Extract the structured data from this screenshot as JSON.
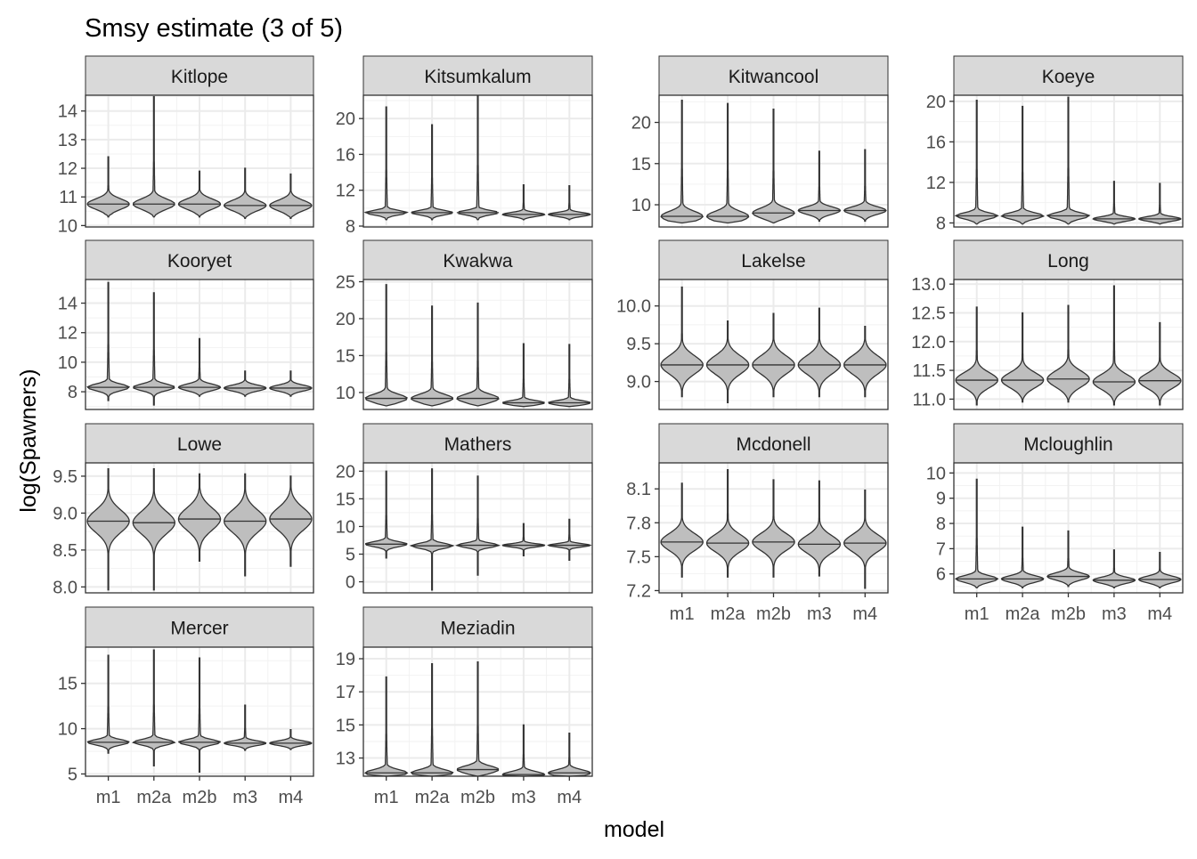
{
  "chart_data": {
    "type": "violin",
    "title": "Smsy estimate (3 of 5)",
    "xlabel": "model",
    "ylabel": "log(Spawners)",
    "categories": [
      "m1",
      "m2a",
      "m2b",
      "m3",
      "m4"
    ],
    "grid": true,
    "colors": {
      "violin_fill": "#bebebe",
      "violin_stroke": "#333333",
      "strip_fill": "#d9d9d9",
      "grid": "#ebebeb",
      "axis_text": "#4d4d4d"
    },
    "panels": [
      {
        "name": "Kitlope",
        "ylim": [
          9.95,
          14.55
        ],
        "yticks": [
          10,
          11,
          12,
          13,
          14
        ],
        "violins": [
          {
            "min": 10.3,
            "max": 12.4,
            "median": 10.75,
            "body": [
              10.45,
              11.1
            ],
            "sd": 0.18
          },
          {
            "min": 10.3,
            "max": 14.5,
            "median": 10.75,
            "body": [
              10.45,
              11.1
            ],
            "sd": 0.18
          },
          {
            "min": 10.3,
            "max": 11.9,
            "median": 10.75,
            "body": [
              10.45,
              11.1
            ],
            "sd": 0.18
          },
          {
            "min": 10.25,
            "max": 12.0,
            "median": 10.7,
            "body": [
              10.4,
              11.05
            ],
            "sd": 0.18
          },
          {
            "min": 10.25,
            "max": 11.8,
            "median": 10.7,
            "body": [
              10.4,
              11.05
            ],
            "sd": 0.18
          }
        ]
      },
      {
        "name": "Kitsumkalum",
        "ylim": [
          7.9,
          22.6
        ],
        "yticks": [
          8,
          12,
          16,
          20
        ],
        "violins": [
          {
            "min": 8.7,
            "max": 21.3,
            "median": 9.5,
            "body": [
              9.0,
              10.0
            ],
            "sd": 0.25
          },
          {
            "min": 8.7,
            "max": 19.3,
            "median": 9.5,
            "body": [
              9.0,
              10.0
            ],
            "sd": 0.25
          },
          {
            "min": 8.7,
            "max": 22.5,
            "median": 9.5,
            "body": [
              9.0,
              10.0
            ],
            "sd": 0.25
          },
          {
            "min": 8.7,
            "max": 12.6,
            "median": 9.3,
            "body": [
              8.9,
              9.8
            ],
            "sd": 0.22
          },
          {
            "min": 8.7,
            "max": 12.5,
            "median": 9.3,
            "body": [
              8.9,
              9.8
            ],
            "sd": 0.22
          }
        ]
      },
      {
        "name": "Kitwancool",
        "ylim": [
          7.3,
          23.3
        ],
        "yticks": [
          10,
          15,
          20
        ],
        "violins": [
          {
            "min": 7.8,
            "max": 22.7,
            "median": 8.6,
            "body": [
              7.9,
              10.5
            ],
            "sd": 0.6
          },
          {
            "min": 7.8,
            "max": 22.3,
            "median": 8.6,
            "body": [
              7.9,
              10.5
            ],
            "sd": 0.6
          },
          {
            "min": 7.8,
            "max": 21.6,
            "median": 9.0,
            "body": [
              8.0,
              11.0
            ],
            "sd": 0.6
          },
          {
            "min": 8.0,
            "max": 16.5,
            "median": 9.3,
            "body": [
              8.4,
              10.2
            ],
            "sd": 0.45
          },
          {
            "min": 8.0,
            "max": 16.7,
            "median": 9.3,
            "body": [
              8.4,
              10.2
            ],
            "sd": 0.45
          }
        ]
      },
      {
        "name": "Koeye",
        "ylim": [
          7.6,
          20.6
        ],
        "yticks": [
          8,
          12,
          16,
          20
        ],
        "violins": [
          {
            "min": 7.9,
            "max": 20.1,
            "median": 8.7,
            "body": [
              8.2,
              9.4
            ],
            "sd": 0.3
          },
          {
            "min": 7.9,
            "max": 19.5,
            "median": 8.7,
            "body": [
              8.2,
              9.4
            ],
            "sd": 0.3
          },
          {
            "min": 7.9,
            "max": 20.4,
            "median": 8.7,
            "body": [
              8.2,
              9.4
            ],
            "sd": 0.3
          },
          {
            "min": 7.9,
            "max": 12.1,
            "median": 8.4,
            "body": [
              8.1,
              8.8
            ],
            "sd": 0.22
          },
          {
            "min": 7.9,
            "max": 11.9,
            "median": 8.4,
            "body": [
              8.1,
              8.8
            ],
            "sd": 0.22
          }
        ]
      },
      {
        "name": "Kooryet",
        "ylim": [
          6.8,
          15.6
        ],
        "yticks": [
          8,
          10,
          12,
          14
        ],
        "violins": [
          {
            "min": 7.4,
            "max": 15.4,
            "median": 8.3,
            "body": [
              7.9,
              8.8
            ],
            "sd": 0.22
          },
          {
            "min": 7.1,
            "max": 14.7,
            "median": 8.3,
            "body": [
              7.9,
              8.8
            ],
            "sd": 0.22
          },
          {
            "min": 7.7,
            "max": 11.6,
            "median": 8.3,
            "body": [
              7.9,
              8.8
            ],
            "sd": 0.22
          },
          {
            "min": 7.7,
            "max": 9.4,
            "median": 8.25,
            "body": [
              7.9,
              8.65
            ],
            "sd": 0.2
          },
          {
            "min": 7.7,
            "max": 9.4,
            "median": 8.25,
            "body": [
              7.9,
              8.65
            ],
            "sd": 0.2
          }
        ]
      },
      {
        "name": "Kwakwa",
        "ylim": [
          7.7,
          25.3
        ],
        "yticks": [
          10,
          15,
          20,
          25
        ],
        "violins": [
          {
            "min": 8.2,
            "max": 24.6,
            "median": 9.2,
            "body": [
              8.3,
              11.0
            ],
            "sd": 0.55
          },
          {
            "min": 8.2,
            "max": 21.7,
            "median": 9.2,
            "body": [
              8.3,
              11.0
            ],
            "sd": 0.55
          },
          {
            "min": 8.2,
            "max": 22.1,
            "median": 9.2,
            "body": [
              8.3,
              10.6
            ],
            "sd": 0.55
          },
          {
            "min": 8.1,
            "max": 16.6,
            "median": 8.6,
            "body": [
              8.2,
              9.3
            ],
            "sd": 0.3
          },
          {
            "min": 8.1,
            "max": 16.5,
            "median": 8.6,
            "body": [
              8.2,
              9.3
            ],
            "sd": 0.3
          }
        ]
      },
      {
        "name": "Lakelse",
        "ylim": [
          8.63,
          10.35
        ],
        "yticks": [
          9.0,
          9.5,
          10.0
        ],
        "violins": [
          {
            "min": 8.8,
            "max": 10.25,
            "median": 9.22,
            "body": [
              8.9,
              9.6
            ],
            "sd": 0.12
          },
          {
            "min": 8.72,
            "max": 9.8,
            "median": 9.22,
            "body": [
              8.9,
              9.6
            ],
            "sd": 0.12
          },
          {
            "min": 8.8,
            "max": 9.9,
            "median": 9.22,
            "body": [
              8.9,
              9.6
            ],
            "sd": 0.12
          },
          {
            "min": 8.8,
            "max": 9.97,
            "median": 9.22,
            "body": [
              8.9,
              9.6
            ],
            "sd": 0.12
          },
          {
            "min": 8.8,
            "max": 9.73,
            "median": 9.22,
            "body": [
              8.9,
              9.6
            ],
            "sd": 0.12
          }
        ]
      },
      {
        "name": "Long",
        "ylim": [
          10.82,
          13.08
        ],
        "yticks": [
          11.0,
          11.5,
          12.0,
          12.5,
          13.0
        ],
        "violins": [
          {
            "min": 10.9,
            "max": 12.6,
            "median": 11.33,
            "body": [
              11.05,
              11.75
            ],
            "sd": 0.13
          },
          {
            "min": 10.95,
            "max": 12.5,
            "median": 11.33,
            "body": [
              11.05,
              11.75
            ],
            "sd": 0.13
          },
          {
            "min": 10.95,
            "max": 12.63,
            "median": 11.35,
            "body": [
              11.05,
              11.85
            ],
            "sd": 0.14
          },
          {
            "min": 10.9,
            "max": 12.97,
            "median": 11.3,
            "body": [
              11.05,
              11.75
            ],
            "sd": 0.13
          },
          {
            "min": 10.9,
            "max": 12.33,
            "median": 11.32,
            "body": [
              11.05,
              11.75
            ],
            "sd": 0.13
          }
        ]
      },
      {
        "name": "Lowe",
        "ylim": [
          7.92,
          9.68
        ],
        "yticks": [
          8.0,
          8.5,
          9.0,
          9.5
        ],
        "violins": [
          {
            "min": 7.96,
            "max": 9.6,
            "median": 8.89,
            "body": [
              8.5,
              9.3
            ],
            "sd": 0.15
          },
          {
            "min": 7.96,
            "max": 9.6,
            "median": 8.87,
            "body": [
              8.5,
              9.3
            ],
            "sd": 0.15
          },
          {
            "min": 8.35,
            "max": 9.53,
            "median": 8.92,
            "body": [
              8.55,
              9.3
            ],
            "sd": 0.15
          },
          {
            "min": 8.15,
            "max": 9.53,
            "median": 8.89,
            "body": [
              8.5,
              9.3
            ],
            "sd": 0.15
          },
          {
            "min": 8.28,
            "max": 9.5,
            "median": 8.92,
            "body": [
              8.55,
              9.3
            ],
            "sd": 0.15
          }
        ]
      },
      {
        "name": "Mathers",
        "ylim": [
          -2.0,
          21.5
        ],
        "yticks": [
          0,
          5,
          10,
          15,
          20
        ],
        "violins": [
          {
            "min": 4.3,
            "max": 20.0,
            "median": 6.8,
            "body": [
              5.6,
              8.0
            ],
            "sd": 0.45
          },
          {
            "min": -1.5,
            "max": 20.4,
            "median": 6.5,
            "body": [
              5.3,
              7.8
            ],
            "sd": 0.45
          },
          {
            "min": 1.2,
            "max": 19.1,
            "median": 6.6,
            "body": [
              5.7,
              7.6
            ],
            "sd": 0.4
          },
          {
            "min": 4.7,
            "max": 10.5,
            "median": 6.6,
            "body": [
              5.9,
              7.3
            ],
            "sd": 0.3
          },
          {
            "min": 3.9,
            "max": 11.3,
            "median": 6.6,
            "body": [
              5.9,
              7.3
            ],
            "sd": 0.3
          }
        ]
      },
      {
        "name": "Mcdonell",
        "ylim": [
          7.18,
          8.33
        ],
        "yticks": [
          7.2,
          7.5,
          7.8,
          8.1
        ],
        "violins": [
          {
            "min": 7.32,
            "max": 8.15,
            "median": 7.63,
            "body": [
              7.42,
              7.88
            ],
            "sd": 0.075
          },
          {
            "min": 7.32,
            "max": 8.27,
            "median": 7.62,
            "body": [
              7.42,
              7.88
            ],
            "sd": 0.075
          },
          {
            "min": 7.32,
            "max": 8.18,
            "median": 7.63,
            "body": [
              7.42,
              7.88
            ],
            "sd": 0.075
          },
          {
            "min": 7.33,
            "max": 8.17,
            "median": 7.61,
            "body": [
              7.42,
              7.88
            ],
            "sd": 0.075
          },
          {
            "min": 7.22,
            "max": 8.09,
            "median": 7.62,
            "body": [
              7.4,
              7.88
            ],
            "sd": 0.075
          }
        ]
      },
      {
        "name": "Mcloughlin",
        "ylim": [
          5.25,
          10.4
        ],
        "yticks": [
          6,
          7,
          8,
          9,
          10
        ],
        "violins": [
          {
            "min": 5.45,
            "max": 9.75,
            "median": 5.8,
            "body": [
              5.5,
              6.3
            ],
            "sd": 0.13
          },
          {
            "min": 5.45,
            "max": 7.85,
            "median": 5.8,
            "body": [
              5.5,
              6.3
            ],
            "sd": 0.13
          },
          {
            "min": 5.5,
            "max": 7.7,
            "median": 5.9,
            "body": [
              5.55,
              6.45
            ],
            "sd": 0.14
          },
          {
            "min": 5.45,
            "max": 6.95,
            "median": 5.75,
            "body": [
              5.5,
              6.2
            ],
            "sd": 0.12
          },
          {
            "min": 5.45,
            "max": 6.85,
            "median": 5.78,
            "body": [
              5.5,
              6.25
            ],
            "sd": 0.13
          }
        ]
      },
      {
        "name": "Mercer",
        "ylim": [
          4.75,
          19.0
        ],
        "yticks": [
          5,
          10,
          15
        ],
        "violins": [
          {
            "min": 7.3,
            "max": 18.1,
            "median": 8.5,
            "body": [
              7.8,
              9.3
            ],
            "sd": 0.3
          },
          {
            "min": 5.9,
            "max": 18.7,
            "median": 8.5,
            "body": [
              7.7,
              9.3
            ],
            "sd": 0.3
          },
          {
            "min": 5.2,
            "max": 17.8,
            "median": 8.5,
            "body": [
              7.8,
              9.2
            ],
            "sd": 0.3
          },
          {
            "min": 7.6,
            "max": 12.6,
            "median": 8.4,
            "body": [
              7.9,
              9.0
            ],
            "sd": 0.25
          },
          {
            "min": 7.7,
            "max": 9.9,
            "median": 8.4,
            "body": [
              7.9,
              9.0
            ],
            "sd": 0.25
          }
        ]
      },
      {
        "name": "Meziadin",
        "ylim": [
          11.9,
          19.7
        ],
        "yticks": [
          13,
          15,
          17,
          19
        ],
        "violins": [
          {
            "min": 11.9,
            "max": 17.9,
            "median": 12.1,
            "body": [
              11.9,
              12.9
            ],
            "sd": 0.2
          },
          {
            "min": 11.9,
            "max": 18.7,
            "median": 12.1,
            "body": [
              11.9,
              12.9
            ],
            "sd": 0.2
          },
          {
            "min": 11.9,
            "max": 18.8,
            "median": 12.3,
            "body": [
              11.9,
              13.1
            ],
            "sd": 0.22
          },
          {
            "min": 11.9,
            "max": 15.0,
            "median": 12.0,
            "body": [
              11.9,
              12.7
            ],
            "sd": 0.18
          },
          {
            "min": 11.9,
            "max": 14.5,
            "median": 12.1,
            "body": [
              11.9,
              12.8
            ],
            "sd": 0.19
          }
        ]
      }
    ]
  }
}
